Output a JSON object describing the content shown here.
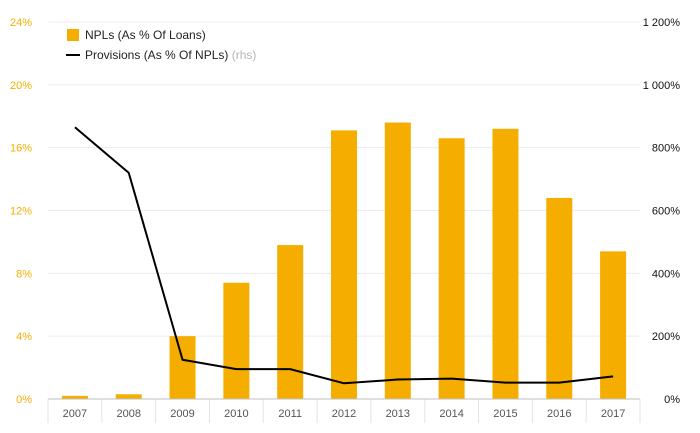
{
  "chart_data": {
    "type": "bar",
    "categories": [
      "2007",
      "2008",
      "2009",
      "2010",
      "2011",
      "2012",
      "2013",
      "2014",
      "2015",
      "2016",
      "2017"
    ],
    "series": [
      {
        "name": "NPLs (As % Of Loans)",
        "type": "bar",
        "axis": "left",
        "color": "#f5ae00",
        "values": [
          0.2,
          0.3,
          4.0,
          7.4,
          9.8,
          17.1,
          17.6,
          16.6,
          17.2,
          12.8,
          9.4
        ]
      },
      {
        "name": "Provisions (As % Of NPLs)",
        "name_suffix": "(rhs)",
        "type": "line",
        "axis": "right",
        "color": "#000000",
        "values": [
          865,
          720,
          125,
          95,
          95,
          50,
          62,
          65,
          52,
          52,
          72
        ]
      }
    ],
    "left_axis": {
      "ylim": [
        0,
        24
      ],
      "ticks": [
        0,
        4,
        8,
        12,
        16,
        20,
        24
      ],
      "tick_labels": [
        "0%",
        "4%",
        "8%",
        "12%",
        "16%",
        "20%",
        "24%"
      ],
      "color": "#f5ae00"
    },
    "right_axis": {
      "ylim": [
        0,
        1200
      ],
      "ticks": [
        0,
        200,
        400,
        600,
        800,
        1000,
        1200
      ],
      "tick_labels": [
        "0%",
        "200%",
        "400%",
        "600%",
        "800%",
        "1 000%",
        "1 200%"
      ],
      "color": "#111111"
    },
    "grid": true,
    "legend_position": "top-left"
  }
}
